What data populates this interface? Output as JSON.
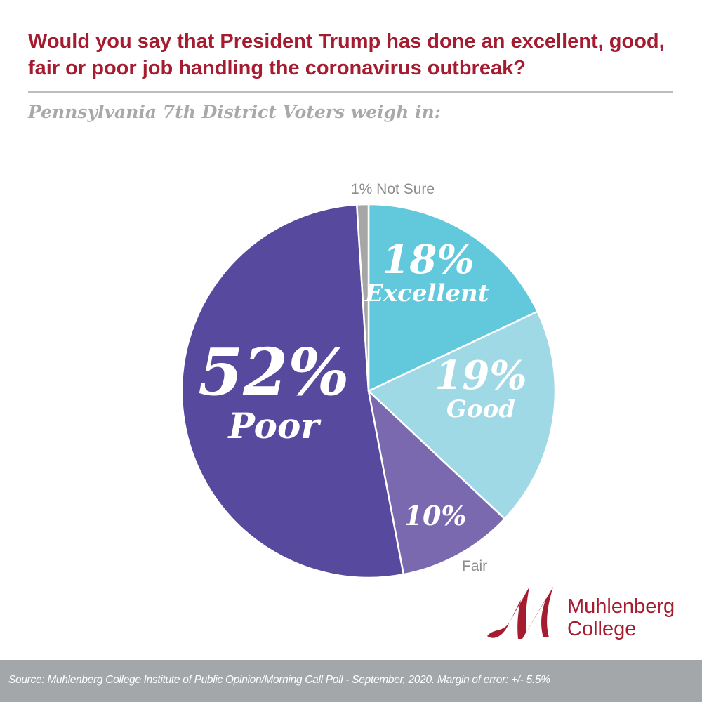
{
  "title": "Would you say that President Trump has done an excellent, good, fair or poor job handling the coronavirus outbreak?",
  "subtitle": "Pennsylvania 7th District Voters weigh in:",
  "chart_data": {
    "type": "pie",
    "start": "12 o'clock, clockwise",
    "slices": [
      {
        "label": "Excellent",
        "value": 18,
        "display": "18%",
        "color": "#62c8dc"
      },
      {
        "label": "Good",
        "value": 19,
        "display": "19%",
        "color": "#9fd9e6"
      },
      {
        "label": "Fair",
        "value": 10,
        "display": "10%",
        "color": "#7b69b0"
      },
      {
        "label": "Poor",
        "value": 52,
        "display": "52%",
        "color": "#574a9e"
      },
      {
        "label": "Not Sure",
        "value": 1,
        "display": "1% Not Sure",
        "color": "#a6a6a6"
      }
    ]
  },
  "logo": {
    "line1": "Muhlenberg",
    "line2": "College",
    "color": "#a51c30"
  },
  "footer": {
    "source": "Source: Muhlenberg College Institute of Public Opinion/Morning Call Poll - September, 2020. Margin of error: +/- 5.5%"
  }
}
